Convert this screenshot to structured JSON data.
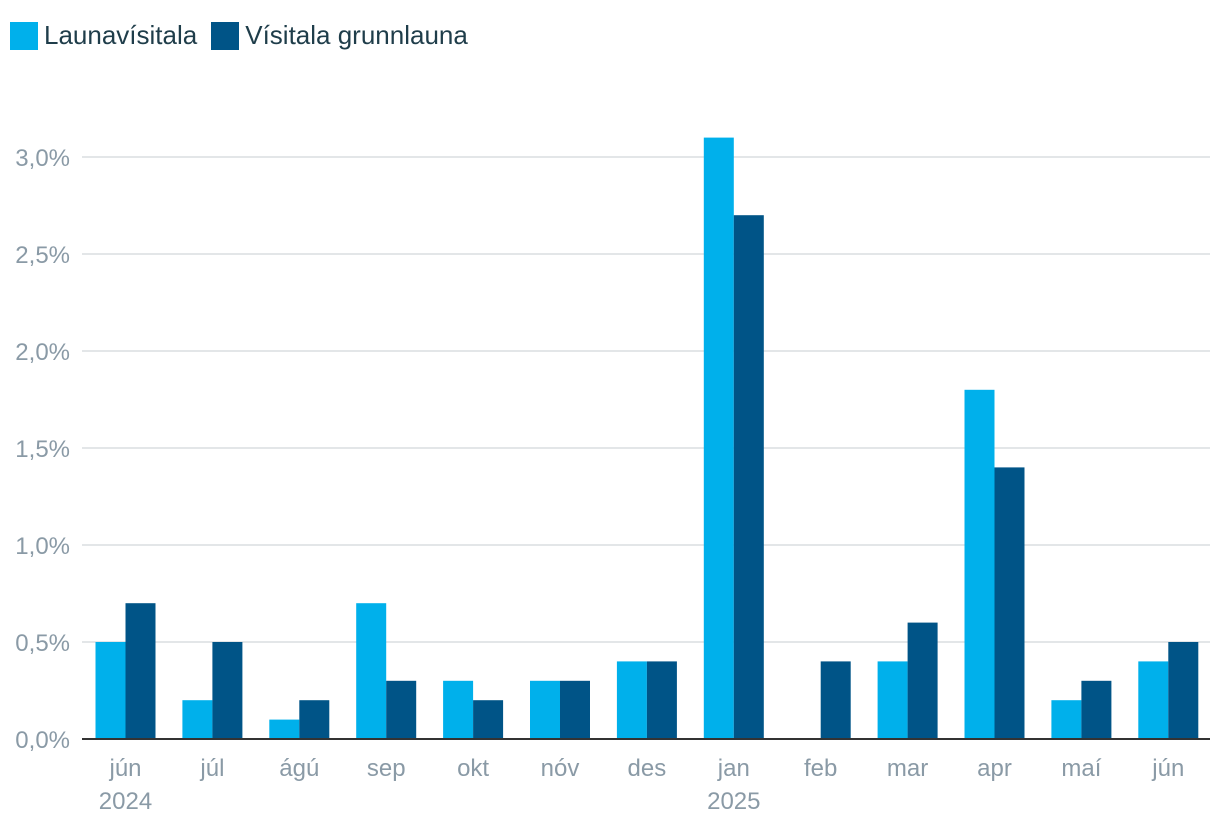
{
  "chart_data": {
    "type": "bar",
    "categories": [
      "jún",
      "júl",
      "ágú",
      "sep",
      "okt",
      "nóv",
      "des",
      "jan",
      "feb",
      "mar",
      "apr",
      "maí",
      "jún"
    ],
    "year_labels": {
      "0": "2024",
      "7": "2025"
    },
    "series": [
      {
        "name": "Launavísitala",
        "color": "#00b0eb",
        "values": [
          0.5,
          0.2,
          0.1,
          0.7,
          0.3,
          0.3,
          0.4,
          3.1,
          0.0,
          0.4,
          1.8,
          0.2,
          0.4
        ]
      },
      {
        "name": "Vísitala grunnlauna",
        "color": "#005487",
        "values": [
          0.7,
          0.5,
          0.2,
          0.3,
          0.2,
          0.3,
          0.4,
          2.7,
          0.4,
          0.6,
          1.4,
          0.3,
          0.5
        ]
      }
    ],
    "yticks": [
      {
        "value": 0.0,
        "label": "0,0%"
      },
      {
        "value": 0.5,
        "label": "0,5%"
      },
      {
        "value": 1.0,
        "label": "1,0%"
      },
      {
        "value": 1.5,
        "label": "1,5%"
      },
      {
        "value": 2.0,
        "label": "2,0%"
      },
      {
        "value": 2.5,
        "label": "2,5%"
      },
      {
        "value": 3.0,
        "label": "3,0%"
      }
    ],
    "ylim": [
      0,
      3.0
    ],
    "grid": true,
    "legend_position": "top-left",
    "title": "",
    "xlabel": "",
    "ylabel": ""
  }
}
